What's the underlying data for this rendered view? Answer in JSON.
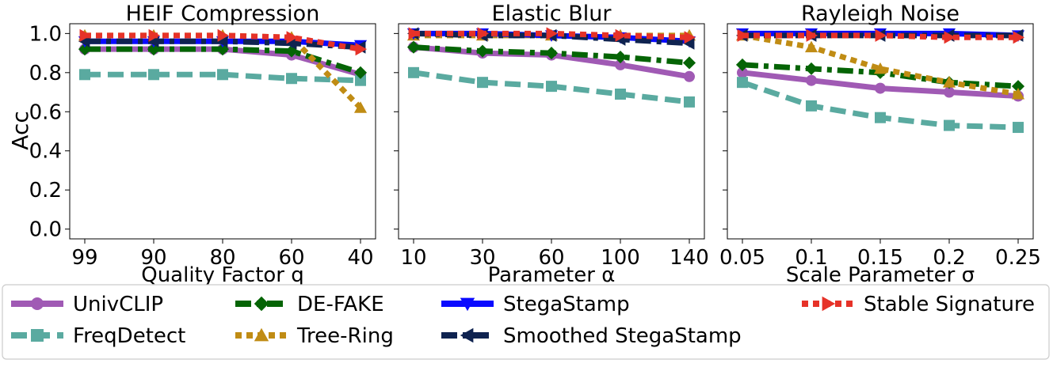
{
  "ylabel": "Acc",
  "yticks": [
    "0.0",
    "0.2",
    "0.4",
    "0.6",
    "0.8",
    "1.0"
  ],
  "ylim": [
    -0.05,
    1.05
  ],
  "series_styles": [
    {
      "name": "UnivCLIP",
      "color": "#a05ab4",
      "dash": "solid",
      "marker": "circle"
    },
    {
      "name": "FreqDetect",
      "color": "#5aaaa0",
      "dash": "dashed",
      "marker": "square"
    },
    {
      "name": "DE-FAKE",
      "color": "#056405",
      "dash": "dashdot",
      "marker": "diamond"
    },
    {
      "name": "Tree-Ring",
      "color": "#c08c14",
      "dash": "dotted",
      "marker": "triangle-up"
    },
    {
      "name": "StegaStamp",
      "color": "#0a0aff",
      "dash": "solid",
      "marker": "triangle-down"
    },
    {
      "name": "Smoothed StegaStamp",
      "color": "#0f2350",
      "dash": "dashdot",
      "marker": "triangle-left"
    },
    {
      "name": "Stable Signature",
      "color": "#e63228",
      "dash": "dotted",
      "marker": "triangle-right"
    }
  ],
  "legend": {
    "items": [
      "UnivCLIP",
      "DE-FAKE",
      "StegaStamp",
      "Stable Signature",
      "FreqDetect",
      "Tree-Ring",
      "Smoothed StegaStamp"
    ]
  },
  "chart_data": [
    {
      "type": "line",
      "title": "HEIF Compression",
      "xlabel": "Quality Factor q",
      "categories": [
        "99",
        "90",
        "80",
        "60",
        "40"
      ],
      "series": [
        {
          "name": "UnivCLIP",
          "values": [
            0.92,
            0.92,
            0.92,
            0.89,
            0.79
          ]
        },
        {
          "name": "FreqDetect",
          "values": [
            0.79,
            0.79,
            0.79,
            0.77,
            0.76
          ]
        },
        {
          "name": "DE-FAKE",
          "values": [
            0.92,
            0.92,
            0.92,
            0.91,
            0.8
          ]
        },
        {
          "name": "Tree-Ring",
          "values": [
            0.99,
            0.99,
            0.99,
            0.98,
            0.62
          ]
        },
        {
          "name": "StegaStamp",
          "values": [
            0.96,
            0.96,
            0.96,
            0.96,
            0.94
          ]
        },
        {
          "name": "Smoothed StegaStamp",
          "values": [
            0.96,
            0.96,
            0.96,
            0.95,
            0.93
          ]
        },
        {
          "name": "Stable Signature",
          "values": [
            0.99,
            0.99,
            0.99,
            0.98,
            0.92
          ]
        }
      ]
    },
    {
      "type": "line",
      "title": "Elastic Blur",
      "xlabel": "Parameter α",
      "categories": [
        "10",
        "30",
        "60",
        "100",
        "140"
      ],
      "series": [
        {
          "name": "UnivCLIP",
          "values": [
            0.93,
            0.9,
            0.89,
            0.84,
            0.78
          ]
        },
        {
          "name": "FreqDetect",
          "values": [
            0.8,
            0.75,
            0.73,
            0.69,
            0.65
          ]
        },
        {
          "name": "DE-FAKE",
          "values": [
            0.93,
            0.91,
            0.9,
            0.88,
            0.85
          ]
        },
        {
          "name": "Tree-Ring",
          "values": [
            0.99,
            0.99,
            0.99,
            0.99,
            0.99
          ]
        },
        {
          "name": "StegaStamp",
          "values": [
            1.0,
            1.0,
            0.99,
            0.98,
            0.96
          ]
        },
        {
          "name": "Smoothed StegaStamp",
          "values": [
            1.0,
            0.99,
            0.99,
            0.97,
            0.95
          ]
        },
        {
          "name": "Stable Signature",
          "values": [
            1.0,
            1.0,
            1.0,
            0.99,
            0.98
          ]
        }
      ]
    },
    {
      "type": "line",
      "title": "Rayleigh Noise",
      "xlabel": "Scale Parameter σ",
      "categories": [
        "0.05",
        "0.1",
        "0.15",
        "0.2",
        "0.25"
      ],
      "series": [
        {
          "name": "UnivCLIP",
          "values": [
            0.8,
            0.76,
            0.72,
            0.7,
            0.68
          ]
        },
        {
          "name": "FreqDetect",
          "values": [
            0.75,
            0.63,
            0.57,
            0.53,
            0.52
          ]
        },
        {
          "name": "DE-FAKE",
          "values": [
            0.84,
            0.82,
            0.8,
            0.75,
            0.73
          ]
        },
        {
          "name": "Tree-Ring",
          "values": [
            0.99,
            0.93,
            0.82,
            0.75,
            0.69
          ]
        },
        {
          "name": "StegaStamp",
          "values": [
            1.0,
            1.0,
            1.0,
            1.0,
            0.99
          ]
        },
        {
          "name": "Smoothed StegaStamp",
          "values": [
            0.99,
            0.99,
            0.99,
            0.99,
            0.99
          ]
        },
        {
          "name": "Stable Signature",
          "values": [
            0.99,
            0.99,
            0.99,
            0.98,
            0.98
          ]
        }
      ]
    }
  ]
}
